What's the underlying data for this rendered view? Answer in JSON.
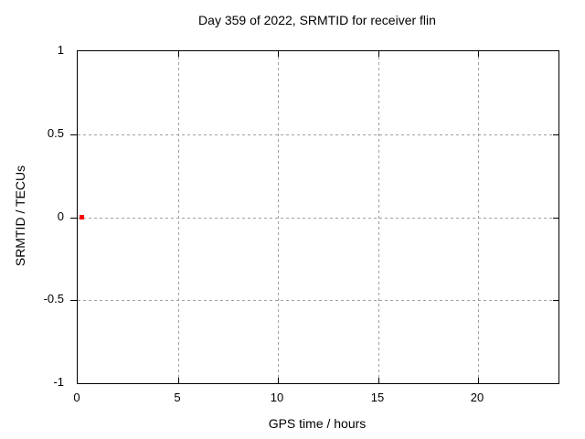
{
  "chart_data": {
    "type": "scatter",
    "title": "Day 359 of 2022, SRMTID for receiver flin",
    "xlabel": "GPS time / hours",
    "ylabel": "SRMTID / TECUs",
    "xlim": [
      0,
      24
    ],
    "ylim": [
      -1,
      1
    ],
    "grid": true,
    "legend": "none",
    "xticks": {
      "values": [
        0,
        5,
        10,
        15,
        20
      ],
      "labels": [
        "0",
        "5",
        "10",
        "15",
        "20"
      ]
    },
    "yticks": {
      "values": [
        -1,
        -0.5,
        0,
        0.5,
        1
      ],
      "labels": [
        "-1",
        "-0.5",
        "0",
        "0.5",
        "1"
      ]
    },
    "colors": {
      "background": "#ffffff",
      "axis": "#000000",
      "grid": "#a0a0a0",
      "text": "#000000",
      "marker": "#ff0000"
    },
    "series": [
      {
        "name": "SRMTID",
        "marker": "filled-square",
        "color": "#ff0000",
        "points": [
          {
            "x": 0.2,
            "y": 0.0
          }
        ]
      }
    ]
  }
}
